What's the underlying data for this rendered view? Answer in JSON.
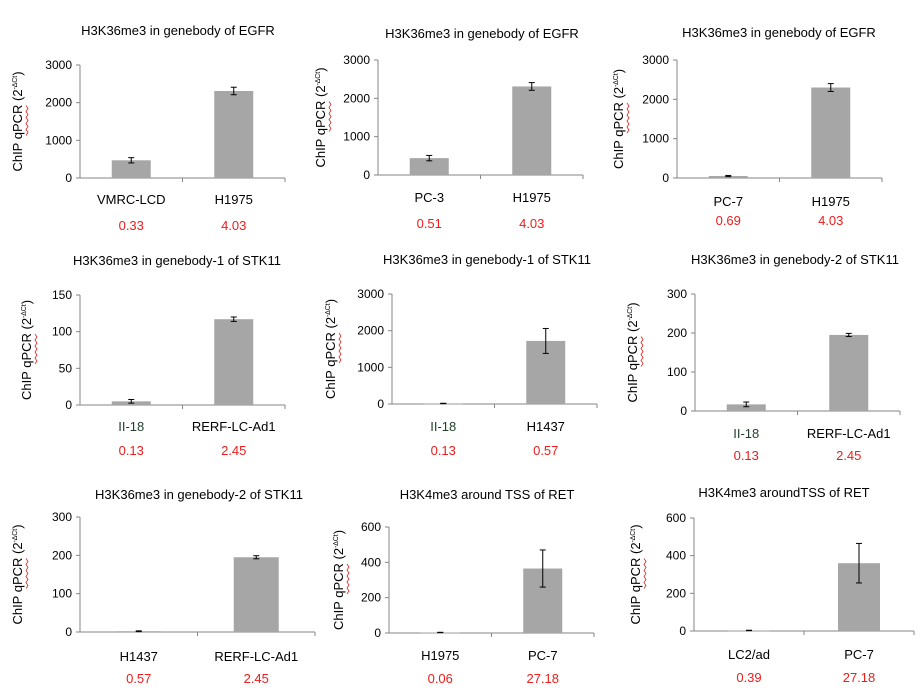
{
  "chart_data": [
    {
      "type": "bar",
      "title": "H3K36me3 in genebody of EGFR",
      "ylabel": "ChIP qPCR (2",
      "ylabel_sup": "-∆Ct",
      "ylabel_close": ")",
      "ylim": [
        0,
        3000
      ],
      "yticks": [
        "0",
        "1000",
        "2000",
        "3000"
      ],
      "categories": [
        "VMRC-LCD",
        "H1975"
      ],
      "values": [
        470,
        2310
      ],
      "errors": [
        70,
        100
      ],
      "annotations": [
        "0.33",
        "4.03"
      ]
    },
    {
      "type": "bar",
      "title": "H3K36me3 in genebody of EGFR",
      "ylabel": "ChIP qPCR (2",
      "ylabel_sup": "-∆Ct",
      "ylabel_close": ")",
      "ylim": [
        0,
        3000
      ],
      "yticks": [
        "0",
        "1000",
        "2000",
        "3000"
      ],
      "categories": [
        "PC-3",
        "H1975"
      ],
      "values": [
        440,
        2310
      ],
      "errors": [
        70,
        100
      ],
      "annotations": [
        "0.51",
        "4.03"
      ]
    },
    {
      "type": "bar",
      "title": "H3K36me3 in genebody of EGFR",
      "ylabel": "ChIP qPCR (2",
      "ylabel_sup": "-∆Ct",
      "ylabel_close": ")",
      "ylim": [
        0,
        3000
      ],
      "yticks": [
        "0",
        "1000",
        "2000",
        "3000"
      ],
      "categories": [
        "PC-7",
        "H1975"
      ],
      "values": [
        50,
        2300
      ],
      "errors": [
        15,
        100
      ],
      "annotations": [
        "0.69",
        "4.03"
      ]
    },
    {
      "type": "bar",
      "title": "H3K36me3 in genebody-1 of STK11",
      "ylabel": "ChIP qPCR (2",
      "ylabel_sup": "-∆Ct",
      "ylabel_close": ")",
      "ylim": [
        0,
        150
      ],
      "yticks": [
        "0",
        "50",
        "100",
        "150"
      ],
      "categories": [
        "II-18",
        "RERF-LC-Ad1"
      ],
      "values": [
        5,
        117
      ],
      "errors": [
        2.5,
        3
      ],
      "annotations": [
        "0.13",
        "2.45"
      ]
    },
    {
      "type": "bar",
      "title": "H3K36me3 in genebody-1 of STK11",
      "ylabel": "ChIP qPCR (2",
      "ylabel_sup": "-∆Ct",
      "ylabel_close": ")",
      "ylim": [
        0,
        3000
      ],
      "yticks": [
        "0",
        "1000",
        "2000",
        "3000"
      ],
      "categories": [
        "II-18",
        "H1437"
      ],
      "values": [
        15,
        1720
      ],
      "errors": [
        5,
        340
      ],
      "annotations": [
        "0.13",
        "0.57"
      ]
    },
    {
      "type": "bar",
      "title": "H3K36me3 in genebody-2 of STK11",
      "ylabel": "ChIP qPCR (2",
      "ylabel_sup": "-∆Ct",
      "ylabel_close": ")",
      "ylim": [
        0,
        300
      ],
      "yticks": [
        "0",
        "100",
        "200",
        "300"
      ],
      "categories": [
        "II-18",
        "RERF-LC-Ad1"
      ],
      "values": [
        17,
        195
      ],
      "errors": [
        6,
        4
      ],
      "annotations": [
        "0.13",
        "2.45"
      ]
    },
    {
      "type": "bar",
      "title": "H3K36me3 in genebody-2 of STK11",
      "ylabel": "ChIP qPCR (2",
      "ylabel_sup": "-∆Ct",
      "ylabel_close": ")",
      "ylim": [
        0,
        300
      ],
      "yticks": [
        "0",
        "100",
        "200",
        "300"
      ],
      "categories": [
        "H1437",
        "RERF-LC-Ad1"
      ],
      "values": [
        2,
        195
      ],
      "errors": [
        1,
        4
      ],
      "annotations": [
        "0.57",
        "2.45"
      ]
    },
    {
      "type": "bar",
      "title": "H3K4me3 around TSS of RET",
      "ylabel": "ChIP qPCR (2",
      "ylabel_sup": "-∆Ct",
      "ylabel_close": ")",
      "ylim": [
        0,
        600
      ],
      "yticks": [
        "0",
        "200",
        "400",
        "600"
      ],
      "categories": [
        "H1975",
        "PC-7"
      ],
      "values": [
        3,
        365
      ],
      "errors": [
        1,
        105
      ],
      "annotations": [
        "0.06",
        "27.18"
      ]
    },
    {
      "type": "bar",
      "title": "H3K4me3 aroundTSS of RET",
      "ylabel": "ChIP qPCR (2",
      "ylabel_sup": "-∆Ct",
      "ylabel_close": ")",
      "ylim": [
        0,
        600
      ],
      "yticks": [
        "0",
        "200",
        "400",
        "600"
      ],
      "categories": [
        "LC2/ad",
        "PC-7"
      ],
      "values": [
        3,
        360
      ],
      "errors": [
        1,
        105
      ],
      "annotations": [
        "0.39",
        "27.18"
      ]
    }
  ]
}
